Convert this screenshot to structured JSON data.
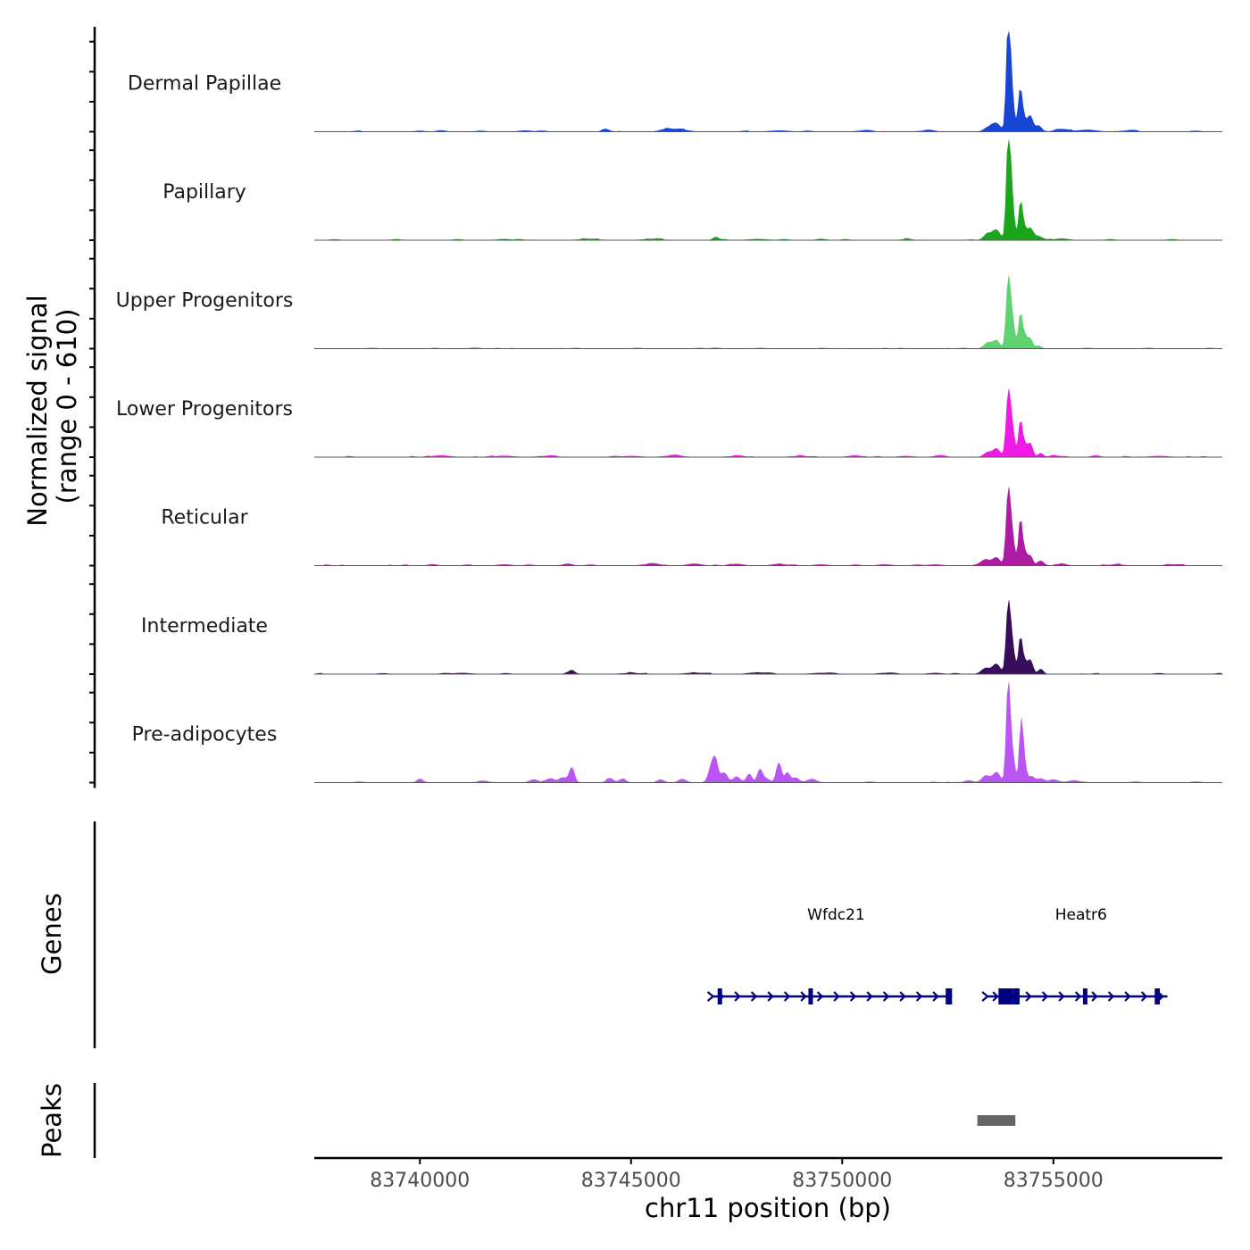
{
  "chart_data": {
    "type": "area",
    "title": "",
    "region": {
      "chrom": "chr11",
      "start": 83737500,
      "end": 83759000
    },
    "xlabel": "chr11 position (bp)",
    "ylabel_line1": "Normalized signal",
    "ylabel_line2": "(range 0 - 610)",
    "ylim": [
      0,
      610
    ],
    "xticks": [
      83740000,
      83745000,
      83750000,
      83755000
    ],
    "xtick_labels": [
      "83740000",
      "83745000",
      "83750000",
      "83755000"
    ],
    "series": [
      {
        "name": "Dermal Papillae",
        "color": "#1745d4",
        "peaks": [
          [
            83753450,
            0.04,
            90
          ],
          [
            83753650,
            0.08,
            100
          ],
          [
            83753930,
            0.93,
            45
          ],
          [
            83754000,
            0.45,
            60
          ],
          [
            83754180,
            0.08,
            40
          ],
          [
            83754220,
            0.35,
            45
          ],
          [
            83754300,
            0.12,
            55
          ],
          [
            83754450,
            0.16,
            65
          ],
          [
            83754650,
            0.06,
            70
          ],
          [
            83755200,
            0.025,
            150
          ],
          [
            83755800,
            0.018,
            200
          ],
          [
            83744400,
            0.02,
            80
          ],
          [
            83745800,
            0.018,
            120
          ],
          [
            83746100,
            0.025,
            200
          ],
          [
            83740500,
            0.012,
            100
          ],
          [
            83742500,
            0.01,
            150
          ],
          [
            83748500,
            0.01,
            200
          ],
          [
            83750500,
            0.01,
            150
          ],
          [
            83752000,
            0.01,
            150
          ],
          [
            83756800,
            0.01,
            150
          ]
        ]
      },
      {
        "name": "Papillary",
        "color": "#1aa51a",
        "peaks": [
          [
            83753450,
            0.06,
            90
          ],
          [
            83753650,
            0.1,
            90
          ],
          [
            83753930,
            0.85,
            45
          ],
          [
            83754000,
            0.5,
            60
          ],
          [
            83754220,
            0.35,
            45
          ],
          [
            83754300,
            0.12,
            55
          ],
          [
            83754450,
            0.12,
            70
          ],
          [
            83754650,
            0.04,
            80
          ],
          [
            83755200,
            0.015,
            150
          ],
          [
            83747000,
            0.03,
            60
          ],
          [
            83742000,
            0.01,
            150
          ],
          [
            83744000,
            0.012,
            200
          ],
          [
            83745500,
            0.012,
            200
          ],
          [
            83748000,
            0.01,
            200
          ],
          [
            83749500,
            0.012,
            100
          ],
          [
            83751500,
            0.01,
            100
          ]
        ]
      },
      {
        "name": "Upper Progenitors",
        "color": "#5ed370",
        "peaks": [
          [
            83753450,
            0.06,
            90
          ],
          [
            83753650,
            0.08,
            80
          ],
          [
            83753930,
            0.62,
            50
          ],
          [
            83754020,
            0.3,
            60
          ],
          [
            83754220,
            0.34,
            45
          ],
          [
            83754320,
            0.12,
            50
          ],
          [
            83754450,
            0.1,
            60
          ],
          [
            83754650,
            0.03,
            60
          ],
          [
            83741300,
            0.012,
            100
          ],
          [
            83747000,
            0.01,
            100
          ]
        ]
      },
      {
        "name": "Lower Progenitors",
        "color": "#ef1be4",
        "peaks": [
          [
            83753450,
            0.05,
            90
          ],
          [
            83753650,
            0.08,
            80
          ],
          [
            83753930,
            0.57,
            50
          ],
          [
            83754020,
            0.3,
            60
          ],
          [
            83754220,
            0.36,
            45
          ],
          [
            83754320,
            0.12,
            50
          ],
          [
            83754450,
            0.14,
            60
          ],
          [
            83754700,
            0.04,
            60
          ],
          [
            83755000,
            0.02,
            80
          ],
          [
            83756000,
            0.015,
            100
          ],
          [
            83740500,
            0.015,
            200
          ],
          [
            83742000,
            0.012,
            200
          ],
          [
            83743000,
            0.01,
            200
          ],
          [
            83745000,
            0.01,
            200
          ],
          [
            83746000,
            0.015,
            200
          ],
          [
            83747500,
            0.01,
            200
          ],
          [
            83749000,
            0.01,
            200
          ],
          [
            83750300,
            0.015,
            150
          ],
          [
            83751500,
            0.01,
            150
          ],
          [
            83752300,
            0.01,
            150
          ],
          [
            83757500,
            0.01,
            200
          ]
        ]
      },
      {
        "name": "Reticular",
        "color": "#ab1ca3",
        "peaks": [
          [
            83753400,
            0.06,
            100
          ],
          [
            83753650,
            0.08,
            90
          ],
          [
            83753930,
            0.68,
            50
          ],
          [
            83754020,
            0.3,
            60
          ],
          [
            83754220,
            0.46,
            45
          ],
          [
            83754320,
            0.13,
            50
          ],
          [
            83754450,
            0.1,
            60
          ],
          [
            83754700,
            0.04,
            70
          ],
          [
            83755200,
            0.02,
            100
          ],
          [
            83743500,
            0.018,
            100
          ],
          [
            83745500,
            0.015,
            200
          ],
          [
            83746500,
            0.018,
            150
          ],
          [
            83747500,
            0.015,
            150
          ],
          [
            83748500,
            0.015,
            150
          ],
          [
            83740300,
            0.012,
            100
          ],
          [
            83742000,
            0.01,
            150
          ],
          [
            83749500,
            0.01,
            150
          ],
          [
            83751000,
            0.01,
            150
          ],
          [
            83752200,
            0.01,
            150
          ],
          [
            83756500,
            0.01,
            150
          ],
          [
            83757800,
            0.01,
            150
          ]
        ]
      },
      {
        "name": "Intermediate",
        "color": "#380c5a",
        "peaks": [
          [
            83753400,
            0.06,
            100
          ],
          [
            83753650,
            0.1,
            90
          ],
          [
            83753930,
            0.63,
            50
          ],
          [
            83754020,
            0.3,
            60
          ],
          [
            83754220,
            0.36,
            45
          ],
          [
            83754320,
            0.12,
            50
          ],
          [
            83754450,
            0.14,
            60
          ],
          [
            83754700,
            0.05,
            60
          ],
          [
            83743600,
            0.035,
            70
          ],
          [
            83748000,
            0.015,
            200
          ],
          [
            83746500,
            0.012,
            200
          ],
          [
            83741000,
            0.01,
            200
          ],
          [
            83745000,
            0.01,
            200
          ],
          [
            83749500,
            0.01,
            200
          ],
          [
            83751000,
            0.01,
            150
          ],
          [
            83752200,
            0.01,
            150
          ]
        ]
      },
      {
        "name": "Pre-adipocytes",
        "color": "#b955f4",
        "peaks": [
          [
            83753400,
            0.07,
            90
          ],
          [
            83753650,
            0.1,
            90
          ],
          [
            83753930,
            0.95,
            45
          ],
          [
            83754020,
            0.3,
            60
          ],
          [
            83754240,
            0.6,
            45
          ],
          [
            83754320,
            0.15,
            50
          ],
          [
            83754480,
            0.06,
            70
          ],
          [
            83754700,
            0.04,
            90
          ],
          [
            83755000,
            0.03,
            100
          ],
          [
            83743600,
            0.15,
            60
          ],
          [
            83743400,
            0.05,
            90
          ],
          [
            83743100,
            0.04,
            90
          ],
          [
            83742700,
            0.03,
            100
          ],
          [
            83744500,
            0.04,
            80
          ],
          [
            83744800,
            0.03,
            80
          ],
          [
            83745700,
            0.03,
            80
          ],
          [
            83746200,
            0.03,
            80
          ],
          [
            83746900,
            0.15,
            70
          ],
          [
            83747000,
            0.2,
            60
          ],
          [
            83747200,
            0.1,
            80
          ],
          [
            83747500,
            0.06,
            80
          ],
          [
            83747800,
            0.08,
            60
          ],
          [
            83748050,
            0.13,
            60
          ],
          [
            83748200,
            0.04,
            80
          ],
          [
            83748500,
            0.2,
            60
          ],
          [
            83748700,
            0.1,
            60
          ],
          [
            83748900,
            0.05,
            80
          ],
          [
            83749300,
            0.03,
            100
          ],
          [
            83740000,
            0.03,
            60
          ],
          [
            83741500,
            0.01,
            150
          ],
          [
            83753000,
            0.02,
            100
          ],
          [
            83755500,
            0.012,
            200
          ]
        ]
      }
    ],
    "genes_track_label": "Genes",
    "genes": [
      {
        "name": "Wfdc21",
        "start": 83746900,
        "end": 83752600,
        "strand": "+",
        "exons": [
          [
            83747050,
            83747150
          ],
          [
            83749200,
            83749280
          ],
          [
            83752450,
            83752600
          ]
        ],
        "color": "#000080"
      },
      {
        "name": "Heatr6",
        "start": 83753400,
        "end": 83757700,
        "strand": "+",
        "exons": [
          [
            83753700,
            83754050
          ],
          [
            83754050,
            83754200
          ],
          [
            83755700,
            83755780
          ],
          [
            83757400,
            83757520
          ]
        ],
        "color": "#000080"
      }
    ],
    "peaks_track_label": "Peaks",
    "peak_regions": [
      {
        "start": 83753200,
        "end": 83754100,
        "color": "#666666"
      }
    ]
  }
}
